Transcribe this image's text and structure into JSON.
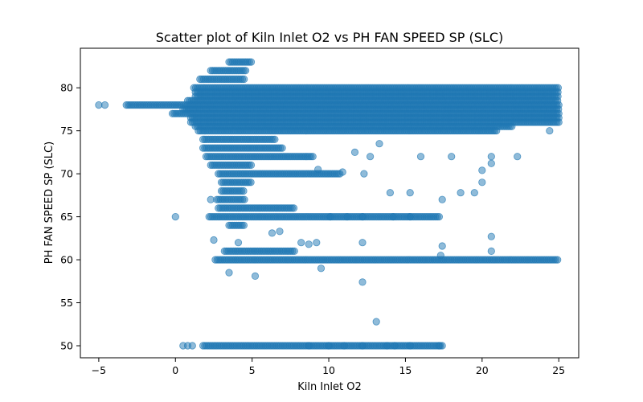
{
  "chart_data": {
    "type": "scatter",
    "title": "Scatter plot of Kiln Inlet O2 vs PH FAN SPEED SP (SLC)",
    "xlabel": "Kiln Inlet O2",
    "ylabel": "PH FAN SPEED SP (SLC)",
    "xlim": [
      -6.2,
      26.3
    ],
    "ylim": [
      48.6,
      84.6
    ],
    "xticks": [
      -5,
      0,
      5,
      10,
      15,
      20,
      25
    ],
    "yticks": [
      50,
      55,
      60,
      65,
      70,
      75,
      80
    ],
    "grid": false,
    "legend": "none",
    "marker_color": "#1f77b4",
    "marker_alpha": 0.5,
    "bands": [
      {
        "y": 83,
        "x_from": 3.5,
        "x_to": 5.0
      },
      {
        "y": 82,
        "x_from": 2.3,
        "x_to": 4.6
      },
      {
        "y": 81,
        "x_from": 1.6,
        "x_to": 4.5
      },
      {
        "y": 80,
        "x_from": 1.2,
        "x_to": 25.0
      },
      {
        "y": 79.5,
        "x_from": 1.3,
        "x_to": 25.0
      },
      {
        "y": 79,
        "x_from": 1.3,
        "x_to": 25.0
      },
      {
        "y": 78.5,
        "x_from": 0.8,
        "x_to": 25.0
      },
      {
        "y": 78,
        "x_from": -3.2,
        "x_to": 25.0
      },
      {
        "y": 77.5,
        "x_from": 0.5,
        "x_to": 25.0
      },
      {
        "y": 77,
        "x_from": -0.2,
        "x_to": 25.0
      },
      {
        "y": 76.5,
        "x_from": 1.0,
        "x_to": 25.0
      },
      {
        "y": 76,
        "x_from": 1.0,
        "x_to": 25.0
      },
      {
        "y": 75.5,
        "x_from": 1.3,
        "x_to": 22.0
      },
      {
        "y": 75,
        "x_from": 1.5,
        "x_to": 21.0
      },
      {
        "y": 74,
        "x_from": 1.8,
        "x_to": 6.5
      },
      {
        "y": 73,
        "x_from": 1.8,
        "x_to": 7.0
      },
      {
        "y": 72,
        "x_from": 2.0,
        "x_to": 9.0
      },
      {
        "y": 71,
        "x_from": 2.3,
        "x_to": 5.0
      },
      {
        "y": 70,
        "x_from": 2.8,
        "x_to": 10.8
      },
      {
        "y": 69,
        "x_from": 3.0,
        "x_to": 5.0
      },
      {
        "y": 68,
        "x_from": 3.0,
        "x_to": 4.5
      },
      {
        "y": 67,
        "x_from": 2.7,
        "x_to": 4.6
      },
      {
        "y": 66,
        "x_from": 2.8,
        "x_to": 7.8
      },
      {
        "y": 65,
        "x_from": 2.2,
        "x_to": 17.3
      },
      {
        "y": 64,
        "x_from": 3.5,
        "x_to": 4.5
      },
      {
        "y": 61,
        "x_from": 3.2,
        "x_to": 7.8
      },
      {
        "y": 60,
        "x_from": 2.6,
        "x_to": 25.0
      },
      {
        "y": 50,
        "x_from": 1.8,
        "x_to": 17.5
      }
    ],
    "sparse_points": [
      [
        -5,
        78
      ],
      [
        -4.6,
        78
      ],
      [
        0,
        65
      ],
      [
        0.5,
        50
      ],
      [
        0.8,
        50
      ],
      [
        1.1,
        50
      ],
      [
        2.3,
        67
      ],
      [
        2.5,
        62.3
      ],
      [
        3.5,
        58.5
      ],
      [
        4.1,
        62
      ],
      [
        5.2,
        58.1
      ],
      [
        6.3,
        63.1
      ],
      [
        6.8,
        63.3
      ],
      [
        8.2,
        62
      ],
      [
        8.7,
        61.8
      ],
      [
        9.5,
        59
      ],
      [
        9.2,
        62
      ],
      [
        12.2,
        57.4
      ],
      [
        12.2,
        62
      ],
      [
        13.1,
        52.8
      ],
      [
        13.3,
        73.5
      ],
      [
        12.7,
        72
      ],
      [
        12.3,
        70
      ],
      [
        14.0,
        67.8
      ],
      [
        15.3,
        67.8
      ],
      [
        16.0,
        72
      ],
      [
        17.4,
        67
      ],
      [
        17.4,
        61.6
      ],
      [
        17.3,
        60.5
      ],
      [
        18.0,
        72
      ],
      [
        18.6,
        67.8
      ],
      [
        19.5,
        67.8
      ],
      [
        20.0,
        69
      ],
      [
        20.6,
        62.7
      ],
      [
        20.6,
        61
      ],
      [
        20.6,
        72
      ],
      [
        20.6,
        71.2
      ],
      [
        20.0,
        70.4
      ],
      [
        22.3,
        72
      ],
      [
        24.4,
        75
      ],
      [
        8.7,
        50
      ],
      [
        10.0,
        50
      ],
      [
        11.0,
        50
      ],
      [
        12.2,
        50
      ],
      [
        13.8,
        50
      ],
      [
        14.3,
        50
      ],
      [
        15.3,
        50
      ],
      [
        17.2,
        50
      ],
      [
        9.3,
        70.5
      ],
      [
        10.9,
        70.2
      ],
      [
        11.7,
        72.5
      ],
      [
        10.1,
        65
      ],
      [
        11.2,
        65
      ],
      [
        12.2,
        65
      ],
      [
        14.2,
        65
      ],
      [
        15.3,
        65
      ]
    ]
  }
}
